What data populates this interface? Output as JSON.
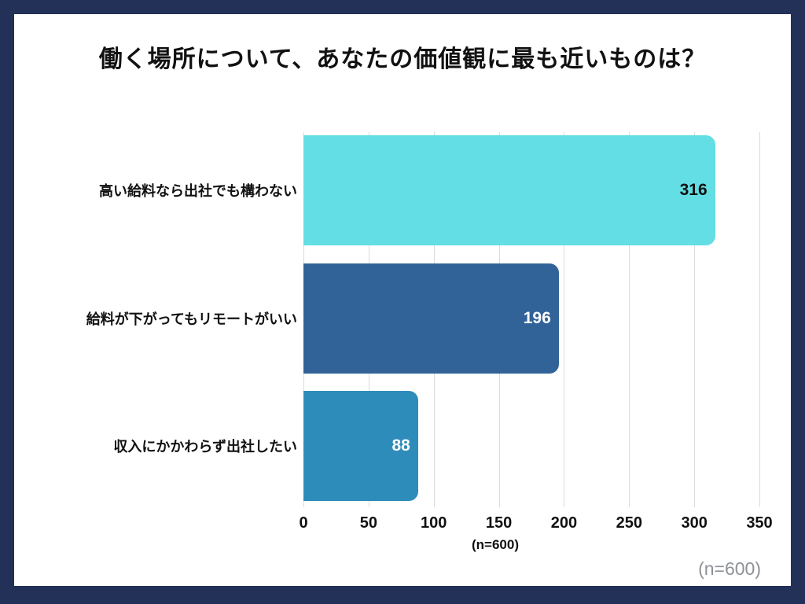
{
  "page": {
    "title": "働く場所について、あなたの価値観に最も近いものは？",
    "footnote": "(n=600)",
    "watermark": "(n=600)"
  },
  "colors": {
    "frame_border": "#233057",
    "page_background": "#ffffff",
    "gridline": "#dbdbdb",
    "title_text": "#111111",
    "watermark_text": "#8e9297"
  },
  "chart_data": {
    "type": "bar",
    "orientation": "horizontal",
    "title": "働く場所について、あなたの価値観に最も近いものは？",
    "categories": [
      "高い給料なら出社でも構わない",
      "給料が下がってもリモートがいい",
      "収入にかかわらず出社したい"
    ],
    "values": [
      316,
      196,
      88
    ],
    "bar_colors": [
      "#63dee4",
      "#316399",
      "#2e8cba"
    ],
    "value_label_colors": [
      "#111111",
      "#ffffff",
      "#ffffff"
    ],
    "xlabel": "",
    "ylabel": "",
    "xlim": [
      0,
      350
    ],
    "x_ticks": [
      0,
      50,
      100,
      150,
      200,
      250,
      300,
      350
    ],
    "grid": "vertical-gridlines-on",
    "legend": "none",
    "sample_size_note": "(n=600)",
    "value_labels_position": "inside-end"
  }
}
